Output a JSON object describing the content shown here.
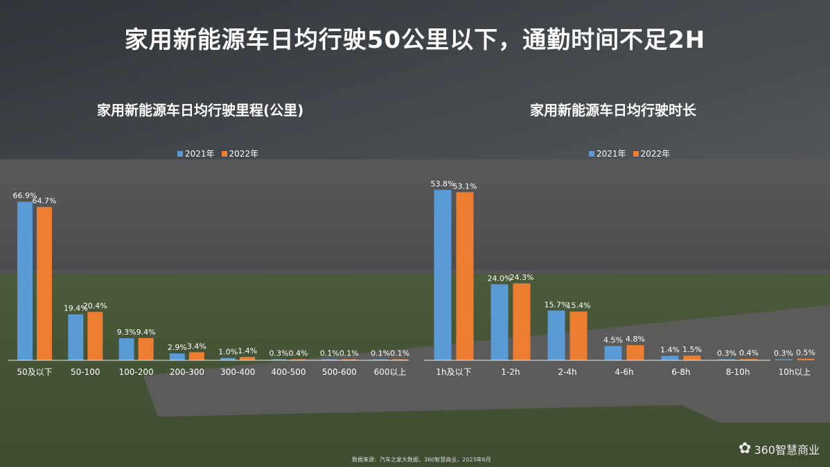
{
  "title": "家用新能源车日均行驶50公里以下，通勤时间不足2H",
  "colors": {
    "y2021": "#5b9bd5",
    "y2022": "#ed7d31"
  },
  "chart_data": [
    {
      "type": "bar",
      "title": "家用新能源车日均行驶里程(公里)",
      "categories": [
        "50及以下",
        "50-100",
        "100-200",
        "200-300",
        "300-400",
        "400-500",
        "500-600",
        "600以上"
      ],
      "series": [
        {
          "name": "2021年",
          "values": [
            66.9,
            19.4,
            9.3,
            2.9,
            1.0,
            0.3,
            0.1,
            0.1
          ],
          "labels": [
            "66.9%",
            "19.4%",
            "9.3%",
            "2.9%",
            "1.0%",
            "0.3%",
            "0.1%",
            "0.1%"
          ]
        },
        {
          "name": "2022年",
          "values": [
            64.7,
            20.4,
            9.4,
            3.4,
            1.4,
            0.4,
            0.1,
            0.1
          ],
          "labels": [
            "64.7%",
            "20.4%",
            "9.4%",
            "3.4%",
            "1.4%",
            "0.4%",
            "0.1%",
            "0.1%"
          ]
        }
      ],
      "legend": "top",
      "grid": false
    },
    {
      "type": "bar",
      "title": "家用新能源车日均行驶时长",
      "categories": [
        "1h及以下",
        "1-2h",
        "2-4h",
        "4-6h",
        "6-8h",
        "8-10h",
        "10h以上"
      ],
      "series": [
        {
          "name": "2021年",
          "values": [
            53.8,
            24.0,
            15.7,
            4.5,
            1.4,
            0.3,
            0.3
          ],
          "labels": [
            "53.8%",
            "24.0%",
            "15.7%",
            "4.5%",
            "1.4%",
            "0.3%",
            "0.3%"
          ]
        },
        {
          "name": "2022年",
          "values": [
            53.1,
            24.3,
            15.4,
            4.8,
            1.5,
            0.4,
            0.5
          ],
          "labels": [
            "53.1%",
            "24.3%",
            "15.4%",
            "4.8%",
            "1.5%",
            "0.4%",
            "0.5%"
          ]
        }
      ],
      "legend": "top",
      "grid": false
    }
  ],
  "source": "数据来源：汽车之家大数据，360智慧商业，2023年6月",
  "logo": {
    "text": "360智慧商业",
    "icon": "360-flower-icon"
  }
}
